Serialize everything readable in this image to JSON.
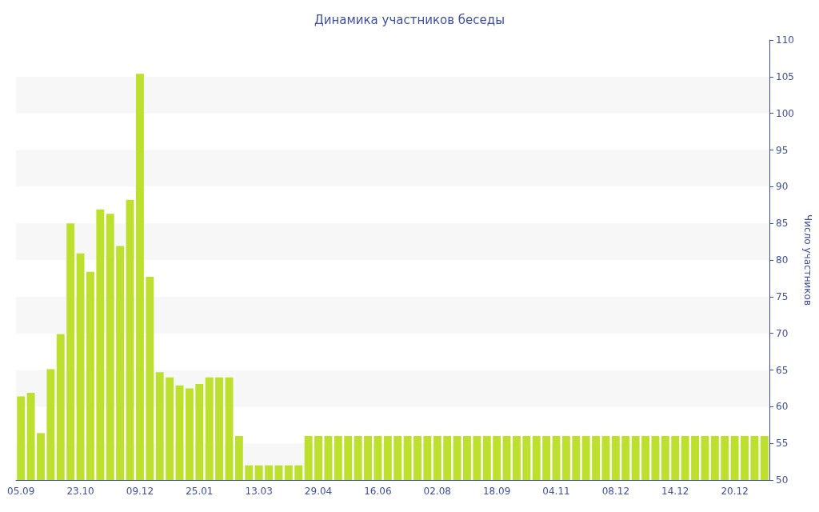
{
  "chart_data": {
    "type": "bar",
    "title": "Динамика участников беседы",
    "ylabel": "Число участников",
    "categories": [
      "05.09",
      null,
      null,
      null,
      null,
      null,
      "23.10",
      null,
      null,
      null,
      null,
      null,
      "09.12",
      null,
      null,
      null,
      null,
      null,
      "25.01",
      null,
      null,
      null,
      null,
      null,
      "13.03",
      null,
      null,
      null,
      null,
      null,
      "29.04",
      null,
      null,
      null,
      null,
      null,
      "16.06",
      null,
      null,
      null,
      null,
      null,
      "02.08",
      null,
      null,
      null,
      null,
      null,
      "18.09",
      null,
      null,
      null,
      null,
      null,
      "04.11",
      null,
      null,
      null,
      null,
      null,
      "08.12",
      null,
      null,
      null,
      null,
      null,
      "14.12",
      null,
      null,
      null,
      null,
      null,
      "20.12",
      null,
      null,
      null
    ],
    "values": [
      61.4,
      61.9,
      56.4,
      65.1,
      69.9,
      85,
      80.9,
      78.4,
      86.9,
      86.3,
      81.9,
      88.2,
      105.4,
      77.7,
      64.7,
      64,
      62.9,
      62.5,
      63.1,
      64,
      64,
      64,
      56,
      52,
      52,
      52,
      52,
      52,
      52,
      56,
      56,
      56,
      56,
      56,
      56,
      56,
      56,
      56,
      56,
      56,
      56,
      56,
      56,
      56,
      56,
      56,
      56,
      56,
      56,
      56,
      56,
      56,
      56,
      56,
      56,
      56,
      56,
      56,
      56,
      56,
      56,
      56,
      56,
      56,
      56,
      56,
      56,
      56,
      56,
      56,
      56,
      56,
      56,
      56,
      56,
      56
    ],
    "color": "#bde02e",
    "ylim": [
      50,
      110
    ],
    "yticks": [
      50,
      55,
      60,
      65,
      70,
      75,
      80,
      85,
      90,
      95,
      100,
      105,
      110
    ],
    "grid": false
  }
}
